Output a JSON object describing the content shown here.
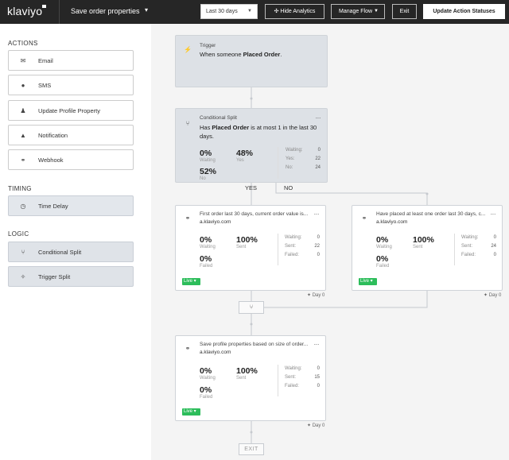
{
  "topbar": {
    "logo": "klaviyo",
    "flow_name": "Save order properties",
    "date_range": "Last 30 days",
    "hide_analytics": "Hide Analytics",
    "manage_flow": "Manage Flow",
    "exit": "Exit",
    "update_statuses": "Update Action Statuses"
  },
  "sidebar": {
    "actions_label": "ACTIONS",
    "actions": [
      {
        "label": "Email",
        "icon": "envelope-icon"
      },
      {
        "label": "SMS",
        "icon": "chat-bubble-icon"
      },
      {
        "label": "Update Profile Property",
        "icon": "person-icon"
      },
      {
        "label": "Notification",
        "icon": "bell-icon"
      },
      {
        "label": "Webhook",
        "icon": "webhook-icon"
      }
    ],
    "timing_label": "TIMING",
    "timing": [
      {
        "label": "Time Delay",
        "icon": "clock-icon"
      }
    ],
    "logic_label": "LOGIC",
    "logic": [
      {
        "label": "Conditional Split",
        "icon": "split-icon"
      },
      {
        "label": "Trigger Split",
        "icon": "sparkle-split-icon"
      }
    ]
  },
  "trigger": {
    "title": "Trigger",
    "desc_prefix": "When someone ",
    "desc_bold": "Placed Order",
    "desc_suffix": "."
  },
  "split": {
    "title": "Conditional Split",
    "desc_line1_prefix": "Has ",
    "desc_line1_bold": "Placed Order",
    "desc_line1_suffix": " is at most 1 in the last 30",
    "desc_line2": "days.",
    "waiting_pct": "0%",
    "waiting_label": "Waiting",
    "yes_pct": "48%",
    "yes_label": "Yes",
    "no_pct": "52%",
    "no_label": "No",
    "stats": [
      {
        "label": "Waiting:",
        "value": "0"
      },
      {
        "label": "Yes:",
        "value": "22"
      },
      {
        "label": "No:",
        "value": "24"
      }
    ],
    "yes_branch": "YES",
    "no_branch": "NO"
  },
  "webhook_left": {
    "title": "First order last 30 days, current order value is...",
    "subtitle": "a.klaviyo.com",
    "waiting_pct": "0%",
    "waiting_label": "Waiting",
    "sent_pct": "100%",
    "sent_label": "Sent",
    "failed_pct": "0%",
    "failed_label": "Failed",
    "stats": [
      {
        "label": "Waiting:",
        "value": "0"
      },
      {
        "label": "Sent:",
        "value": "22"
      },
      {
        "label": "Failed:",
        "value": "0"
      }
    ],
    "status": "Live",
    "delay": "Day 0"
  },
  "webhook_right": {
    "title": "Have placed at least one order last 30 days, c...",
    "subtitle": "a.klaviyo.com",
    "waiting_pct": "0%",
    "waiting_label": "Waiting",
    "sent_pct": "100%",
    "sent_label": "Sent",
    "failed_pct": "0%",
    "failed_label": "Failed",
    "stats": [
      {
        "label": "Waiting:",
        "value": "0"
      },
      {
        "label": "Sent:",
        "value": "24"
      },
      {
        "label": "Failed:",
        "value": "0"
      }
    ],
    "status": "Live",
    "delay": "Day 0"
  },
  "webhook_bottom": {
    "title": "Save profile properties based on size of order...",
    "subtitle": "a.klaviyo.com",
    "waiting_pct": "0%",
    "waiting_label": "Waiting",
    "sent_pct": "100%",
    "sent_label": "Sent",
    "failed_pct": "0%",
    "failed_label": "Failed",
    "stats": [
      {
        "label": "Waiting:",
        "value": "0"
      },
      {
        "label": "Sent:",
        "value": "15"
      },
      {
        "label": "Failed:",
        "value": "0"
      }
    ],
    "status": "Live",
    "delay": "Day 0"
  },
  "exit_node": "EXIT",
  "colors": {
    "topbar": "#262626",
    "live_badge": "#2dbd5b",
    "logic_card": "#dde1e6"
  }
}
